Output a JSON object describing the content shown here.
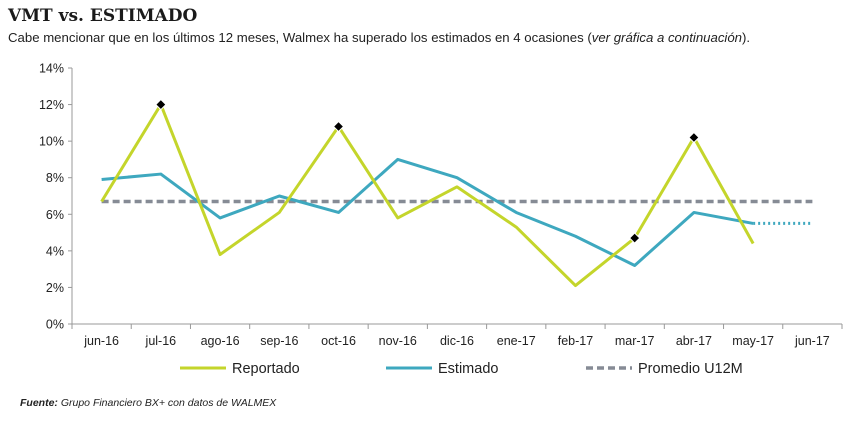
{
  "title": "VMT vs. ESTIMADO",
  "subtitle": {
    "before": "Cabe mencionar que en los últimos 12 meses, Walmex ha superado los estimados en 4 ocasiones (",
    "emph": "ver gráfica a continuación",
    "after": ")."
  },
  "source": {
    "label": "Fuente:",
    "text": " Grupo Financiero BX+ con datos de WALMEX"
  },
  "colors": {
    "reportado": "#c4d52b",
    "estimado": "#3ea8bf",
    "promedio": "#868b95",
    "marker": "#000000"
  },
  "chart_data": {
    "type": "line",
    "categories": [
      "jun-16",
      "jul-16",
      "ago-16",
      "sep-16",
      "oct-16",
      "nov-16",
      "dic-16",
      "ene-17",
      "feb-17",
      "mar-17",
      "abr-17",
      "may-17",
      "jun-17"
    ],
    "ylim": [
      0,
      14
    ],
    "yticks": [
      "0%",
      "2%",
      "4%",
      "6%",
      "8%",
      "10%",
      "12%",
      "14%"
    ],
    "grid": false,
    "legend_position": "bottom",
    "series": [
      {
        "name": "Reportado",
        "values": [
          6.7,
          12.0,
          3.8,
          6.1,
          10.8,
          5.8,
          7.5,
          5.3,
          2.1,
          4.7,
          10.2,
          4.4,
          null
        ],
        "highlight": [
          1,
          4,
          9,
          10
        ]
      },
      {
        "name": "Estimado",
        "values": [
          7.9,
          8.2,
          5.8,
          7.0,
          6.1,
          9.0,
          8.0,
          6.1,
          4.8,
          3.2,
          6.1,
          5.5,
          5.5
        ],
        "dotted_from": 11
      },
      {
        "name": "Promedio U12M",
        "values": [
          6.7,
          6.7,
          6.7,
          6.7,
          6.7,
          6.7,
          6.7,
          6.7,
          6.7,
          6.7,
          6.7,
          6.7,
          6.7
        ],
        "style": "dashed"
      }
    ]
  }
}
